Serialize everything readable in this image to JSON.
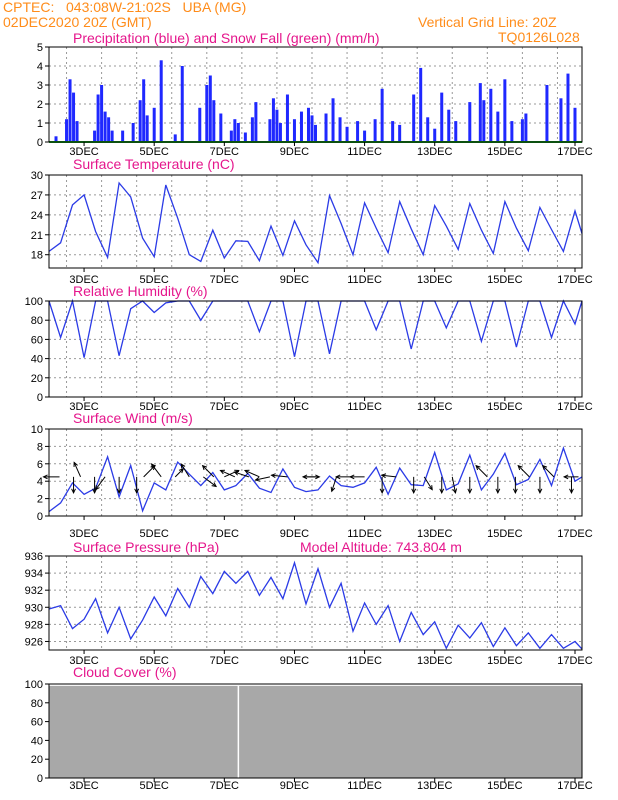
{
  "header": {
    "line1": "CPTEC:   043:08W-21:02S   UBA (MG)",
    "line2": "02DEC2020 20Z (GMT)",
    "grid_note": "Vertical Grid Line: 20Z",
    "run_code": "TQ0126L028"
  },
  "colors": {
    "header": "#ff8c1a",
    "title": "#e5168c",
    "rain": "#1f28ff",
    "snow": "#18a020",
    "line": "#2b3be6",
    "cloud": "#a8a8a8",
    "grid": "#999999"
  },
  "x_axis": {
    "start": "02DEC2020 20Z",
    "range_days": [
      0,
      15.2
    ],
    "ticks": [
      {
        "label": "3DEC",
        "day": 1
      },
      {
        "label": "5DEC",
        "day": 3
      },
      {
        "label": "7DEC",
        "day": 5
      },
      {
        "label": "9DEC",
        "day": 7
      },
      {
        "label": "11DEC",
        "day": 9
      },
      {
        "label": "13DEC",
        "day": 11
      },
      {
        "label": "15DEC",
        "day": 13
      },
      {
        "label": "17DEC",
        "day": 15
      }
    ]
  },
  "chart_data": [
    {
      "type": "bar",
      "title": "Precipitation (blue) and Snow Fall (green) (mm/h)",
      "ylim": [
        0,
        5
      ],
      "yticks": [
        "0",
        "1",
        "2",
        "3",
        "4",
        "5"
      ],
      "series": [
        {
          "name": "precipitation",
          "x": [
            0.2,
            0.5,
            0.6,
            0.7,
            0.8,
            1.3,
            1.4,
            1.5,
            1.6,
            1.7,
            1.8,
            2.1,
            2.4,
            2.6,
            2.7,
            2.8,
            3.0,
            3.2,
            3.6,
            3.8,
            4.3,
            4.5,
            4.6,
            4.7,
            4.9,
            5.2,
            5.3,
            5.4,
            5.6,
            5.8,
            5.9,
            6.3,
            6.4,
            6.5,
            6.6,
            6.8,
            7.0,
            7.2,
            7.4,
            7.5,
            7.6,
            7.9,
            8.1,
            8.3,
            8.5,
            8.8,
            9.0,
            9.3,
            9.5,
            9.8,
            10.0,
            10.4,
            10.6,
            10.8,
            11.0,
            11.2,
            11.4,
            11.6,
            12.0,
            12.3,
            12.4,
            12.6,
            12.8,
            13.0,
            13.2,
            13.5,
            13.6,
            14.2,
            14.6,
            14.8,
            15.0
          ],
          "values": [
            0.3,
            1.2,
            3.3,
            2.6,
            1.1,
            0.6,
            2.5,
            3.0,
            1.6,
            1.3,
            0.6,
            0.6,
            1.0,
            2.2,
            3.3,
            1.4,
            1.8,
            4.3,
            0.4,
            4.0,
            1.8,
            3.0,
            3.5,
            2.2,
            1.5,
            0.6,
            1.2,
            1.0,
            0.5,
            1.3,
            2.1,
            1.2,
            2.3,
            1.7,
            1.0,
            2.5,
            1.2,
            1.6,
            1.8,
            1.4,
            0.9,
            1.5,
            2.3,
            1.3,
            0.8,
            1.1,
            0.6,
            1.2,
            2.8,
            1.1,
            0.9,
            2.5,
            3.9,
            1.3,
            0.7,
            2.6,
            1.7,
            1.1,
            2.1,
            3.1,
            2.2,
            2.8,
            1.6,
            3.3,
            1.1,
            1.2,
            1.5,
            3.0,
            2.3,
            3.6,
            1.8
          ]
        },
        {
          "name": "snow",
          "x": [
            0,
            15.2
          ],
          "values": [
            0,
            0
          ]
        }
      ]
    },
    {
      "type": "line",
      "title": "Surface Temperature (nC)",
      "ylim": [
        16,
        30
      ],
      "yticks": [
        "18",
        "21",
        "24",
        "27",
        "30"
      ],
      "x": [
        0,
        0.33,
        0.67,
        1.0,
        1.33,
        1.67,
        2.0,
        2.33,
        2.67,
        3.0,
        3.33,
        3.67,
        4.0,
        4.33,
        4.67,
        5.0,
        5.33,
        5.67,
        6.0,
        6.33,
        6.67,
        7.0,
        7.33,
        7.67,
        8.0,
        8.33,
        8.67,
        9.0,
        9.33,
        9.67,
        10.0,
        10.33,
        10.67,
        11.0,
        11.33,
        11.67,
        12.0,
        12.33,
        12.67,
        13.0,
        13.33,
        13.67,
        14.0,
        14.33,
        14.67,
        15.0,
        15.2
      ],
      "values": [
        18.5,
        19.8,
        25.5,
        27.0,
        21.5,
        17.6,
        28.8,
        26.7,
        20.5,
        17.7,
        28.5,
        23.5,
        18.0,
        17.0,
        21.7,
        17.5,
        20.1,
        20.0,
        17.1,
        22.3,
        17.9,
        23.1,
        19.5,
        16.8,
        26.9,
        22.7,
        18.0,
        25.8,
        22.0,
        18.3,
        26.0,
        21.9,
        18.0,
        25.4,
        22.3,
        18.8,
        25.7,
        21.7,
        18.2,
        26.0,
        22.0,
        18.6,
        25.1,
        21.8,
        18.5,
        24.6,
        21.2
      ]
    },
    {
      "type": "line",
      "title": "Relative Humidity (%)",
      "ylim": [
        0,
        100
      ],
      "yticks": [
        "0",
        "20",
        "40",
        "60",
        "80",
        "100"
      ],
      "x": [
        0,
        0.33,
        0.67,
        1.0,
        1.33,
        1.67,
        2.0,
        2.33,
        2.67,
        3.0,
        3.33,
        3.67,
        4.0,
        4.33,
        4.67,
        5.0,
        5.33,
        5.67,
        6.0,
        6.33,
        6.67,
        7.0,
        7.33,
        7.67,
        8.0,
        8.33,
        8.67,
        9.0,
        9.33,
        9.67,
        10.0,
        10.33,
        10.67,
        11.0,
        11.33,
        11.67,
        12.0,
        12.33,
        12.67,
        13.0,
        13.33,
        13.67,
        14.0,
        14.33,
        14.67,
        15.0,
        15.2
      ],
      "values": [
        100,
        62,
        100,
        41,
        100,
        100,
        43,
        92,
        100,
        88,
        98,
        100,
        100,
        80,
        100,
        100,
        100,
        100,
        68,
        100,
        100,
        42,
        100,
        100,
        45,
        100,
        100,
        100,
        70,
        100,
        100,
        50,
        100,
        100,
        72,
        100,
        100,
        58,
        100,
        100,
        52,
        100,
        100,
        62,
        100,
        76,
        100
      ]
    },
    {
      "type": "line",
      "title": "Surface Wind (m/s)",
      "ylim": [
        0,
        10
      ],
      "yticks": [
        "0",
        "2",
        "4",
        "6",
        "8",
        "10"
      ],
      "x": [
        0,
        0.33,
        0.67,
        1.0,
        1.33,
        1.67,
        2.0,
        2.33,
        2.67,
        3.0,
        3.33,
        3.67,
        4.0,
        4.33,
        4.67,
        5.0,
        5.33,
        5.67,
        6.0,
        6.33,
        6.67,
        7.0,
        7.33,
        7.67,
        8.0,
        8.33,
        8.67,
        9.0,
        9.33,
        9.67,
        10.0,
        10.33,
        10.67,
        11.0,
        11.33,
        11.67,
        12.0,
        12.33,
        12.67,
        13.0,
        13.33,
        13.67,
        14.0,
        14.33,
        14.67,
        15.0,
        15.2
      ],
      "values": [
        0.5,
        1.5,
        3.8,
        2.5,
        3.2,
        6.8,
        2.2,
        5.8,
        0.6,
        3.8,
        3.0,
        6.2,
        4.8,
        3.5,
        5.0,
        3.0,
        3.5,
        4.9,
        3.2,
        2.7,
        5.4,
        3.3,
        2.8,
        3.0,
        4.6,
        3.5,
        3.3,
        3.8,
        5.6,
        2.5,
        5.5,
        3.6,
        3.5,
        7.3,
        3.0,
        3.7,
        7.0,
        3.0,
        4.8,
        7.2,
        3.6,
        4.2,
        6.5,
        3.5,
        7.8,
        4.0,
        4.5
      ],
      "wind_arrows": [
        {
          "day": 0.3,
          "u": -1.0,
          "v": 0.0
        },
        {
          "day": 0.7,
          "u": 0.0,
          "v": -1.0
        },
        {
          "day": 0.9,
          "u": -0.4,
          "v": 0.9
        },
        {
          "day": 1.3,
          "u": 0.0,
          "v": -1.0
        },
        {
          "day": 1.6,
          "u": -0.6,
          "v": -0.8
        },
        {
          "day": 2.0,
          "u": 0.0,
          "v": -1.0
        },
        {
          "day": 2.5,
          "u": 0.0,
          "v": -1.0
        },
        {
          "day": 2.7,
          "u": 0.7,
          "v": 0.7
        },
        {
          "day": 3.2,
          "u": -0.6,
          "v": 0.8
        },
        {
          "day": 3.6,
          "u": 0.5,
          "v": 0.5
        },
        {
          "day": 4.0,
          "u": -0.5,
          "v": 0.8
        },
        {
          "day": 4.4,
          "u": 0.8,
          "v": -0.6
        },
        {
          "day": 4.7,
          "u": -0.7,
          "v": 0.7
        },
        {
          "day": 5.0,
          "u": 0.9,
          "v": 0.4
        },
        {
          "day": 5.3,
          "u": -0.9,
          "v": 0.4
        },
        {
          "day": 5.7,
          "u": -0.9,
          "v": 0.3
        },
        {
          "day": 6.0,
          "u": -0.9,
          "v": 0.4
        },
        {
          "day": 6.3,
          "u": -0.9,
          "v": -0.2
        },
        {
          "day": 6.8,
          "u": -1.0,
          "v": 0.1
        },
        {
          "day": 7.3,
          "u": 0.9,
          "v": 0.0
        },
        {
          "day": 7.7,
          "u": -1.0,
          "v": 0.0
        },
        {
          "day": 8.2,
          "u": -0.3,
          "v": -0.9
        },
        {
          "day": 8.6,
          "u": -0.9,
          "v": 0.0
        },
        {
          "day": 9.0,
          "u": -0.9,
          "v": 0.0
        },
        {
          "day": 9.5,
          "u": 0.0,
          "v": -1.0
        },
        {
          "day": 9.9,
          "u": -0.9,
          "v": 0.1
        },
        {
          "day": 10.4,
          "u": 0.0,
          "v": -1.0
        },
        {
          "day": 10.7,
          "u": 0.5,
          "v": -0.8
        },
        {
          "day": 11.2,
          "u": 0.0,
          "v": -1.0
        },
        {
          "day": 11.5,
          "u": 0.2,
          "v": -1.0
        },
        {
          "day": 12.0,
          "u": 0.0,
          "v": -1.0
        },
        {
          "day": 12.5,
          "u": -0.7,
          "v": 0.7
        },
        {
          "day": 12.8,
          "u": 0.0,
          "v": -1.0
        },
        {
          "day": 13.3,
          "u": 0.0,
          "v": -1.0
        },
        {
          "day": 13.7,
          "u": -0.7,
          "v": 0.7
        },
        {
          "day": 14.0,
          "u": 0.0,
          "v": -1.0
        },
        {
          "day": 14.4,
          "u": -0.7,
          "v": 0.7
        },
        {
          "day": 14.9,
          "u": 0.0,
          "v": -1.0
        },
        {
          "day": 15.1,
          "u": -0.9,
          "v": 0.0
        }
      ]
    },
    {
      "type": "line",
      "title": "Surface Pressure (hPa)",
      "annotation": "Model Altitude: 743.804 m",
      "ylim": [
        925,
        936
      ],
      "yticks": [
        "926",
        "928",
        "930",
        "932",
        "934",
        "936"
      ],
      "x": [
        0,
        0.33,
        0.67,
        1.0,
        1.33,
        1.67,
        2.0,
        2.33,
        2.67,
        3.0,
        3.33,
        3.67,
        4.0,
        4.33,
        4.67,
        5.0,
        5.33,
        5.67,
        6.0,
        6.33,
        6.67,
        7.0,
        7.33,
        7.67,
        8.0,
        8.33,
        8.67,
        9.0,
        9.33,
        9.67,
        10.0,
        10.33,
        10.67,
        11.0,
        11.33,
        11.67,
        12.0,
        12.33,
        12.67,
        13.0,
        13.33,
        13.67,
        14.0,
        14.33,
        14.67,
        15.0,
        15.2
      ],
      "values": [
        929.8,
        930.2,
        927.5,
        928.6,
        931.0,
        927.0,
        930.0,
        926.3,
        928.5,
        931.2,
        929.0,
        932.2,
        930.0,
        933.6,
        931.6,
        934.2,
        932.8,
        934.2,
        931.4,
        933.5,
        931.0,
        935.2,
        930.4,
        934.5,
        930.0,
        932.8,
        927.2,
        930.5,
        928.0,
        930.2,
        926.0,
        929.4,
        926.8,
        928.3,
        925.2,
        927.9,
        926.4,
        928.2,
        925.4,
        927.6,
        925.5,
        927.0,
        925.2,
        926.8,
        925.2,
        926.0,
        925.1
      ]
    },
    {
      "type": "area",
      "title": "Cloud Cover (%)",
      "ylim": [
        0,
        100
      ],
      "yticks": [
        "0",
        "20",
        "40",
        "60",
        "80",
        "100"
      ],
      "x": [
        0,
        15.2
      ],
      "values": [
        98,
        98
      ],
      "clear_gap_day": 5.4
    }
  ]
}
